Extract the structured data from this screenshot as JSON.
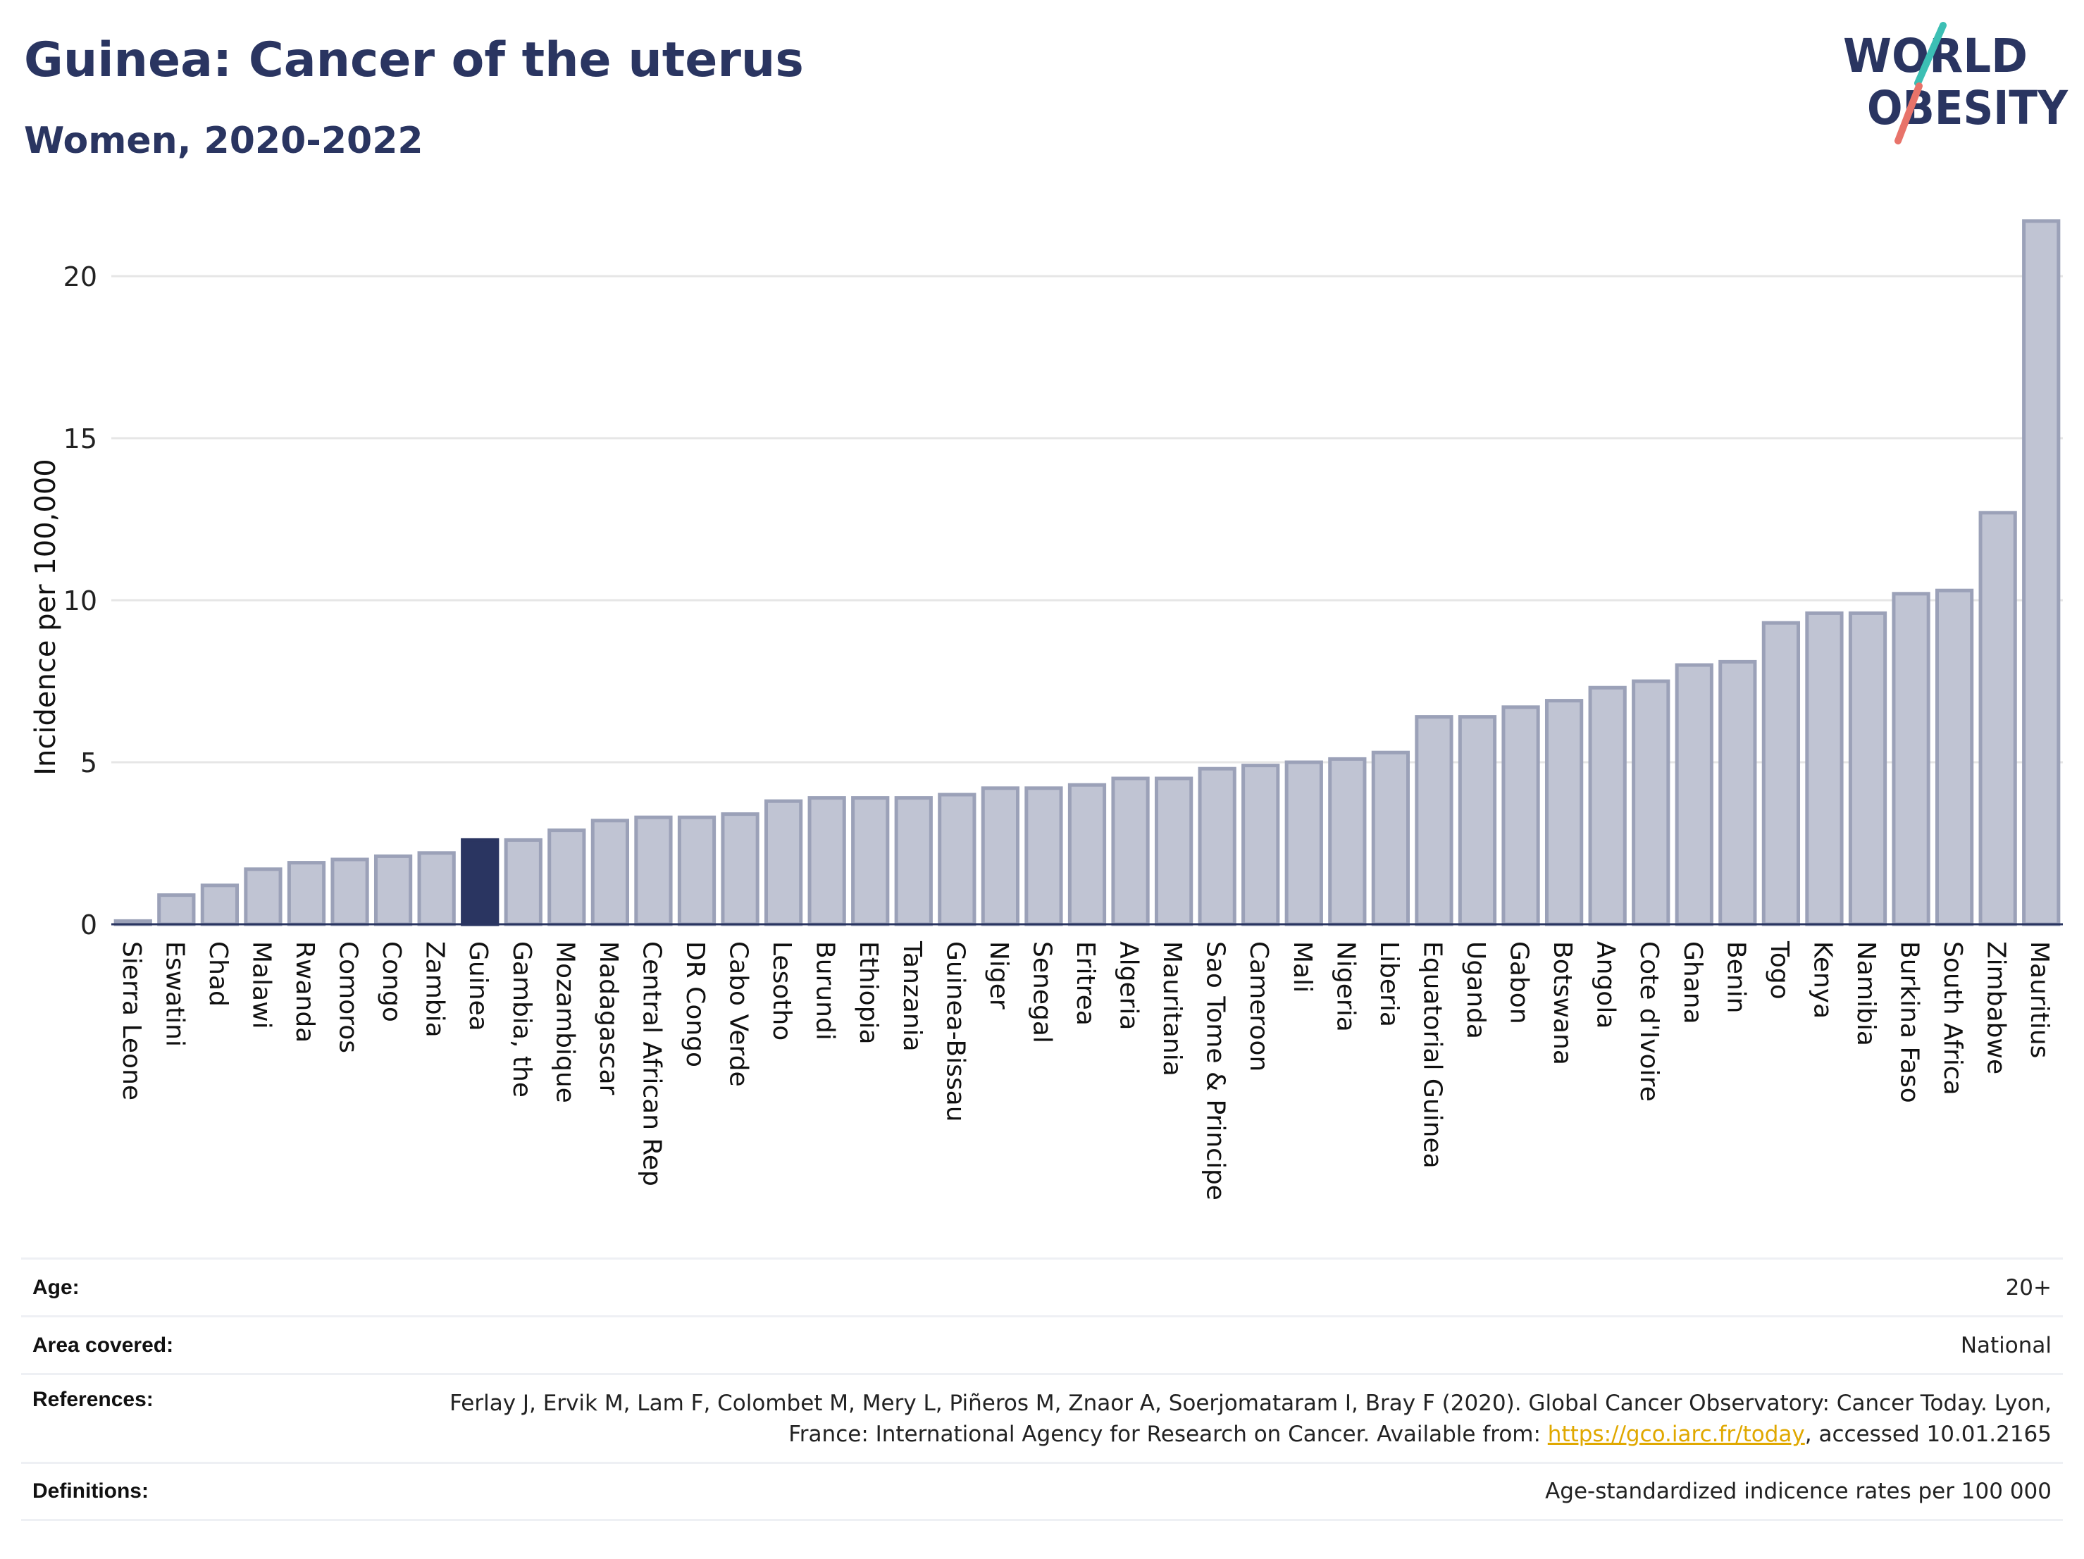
{
  "header": {
    "title": "Guinea: Cancer of the uterus",
    "subtitle": "Women, 2020-2022"
  },
  "logo": {
    "line1": "WORLD",
    "line2": "OBESITY"
  },
  "colors": {
    "highlight": "#2a3561",
    "bar_fill": "#c0c4d3",
    "bar_stroke": "#9ba1b8",
    "grid": "#e6e6e6",
    "logo_text": "#2a3561",
    "logo_teal": "#3cbfb4",
    "logo_coral": "#e8736a",
    "link": "#e0a800"
  },
  "chart_data": {
    "type": "bar",
    "ylabel": "Incidence per 100,000",
    "ylim": [
      0,
      22
    ],
    "yticks": [
      0,
      5,
      10,
      15,
      20
    ],
    "grid": true,
    "highlight_category": "Guinea",
    "categories": [
      "Sierra Leone",
      "Eswatini",
      "Chad",
      "Malawi",
      "Rwanda",
      "Comoros",
      "Congo",
      "Zambia",
      "Guinea",
      "Gambia, the",
      "Mozambique",
      "Madagascar",
      "Central African Rep",
      "DR Congo",
      "Cabo Verde",
      "Lesotho",
      "Burundi",
      "Ethiopia",
      "Tanzania",
      "Guinea-Bissau",
      "Niger",
      "Senegal",
      "Eritrea",
      "Algeria",
      "Mauritania",
      "Sao Tome & Principe",
      "Cameroon",
      "Mali",
      "Nigeria",
      "Liberia",
      "Equatorial Guinea",
      "Uganda",
      "Gabon",
      "Botswana",
      "Angola",
      "Cote d'Ivoire",
      "Ghana",
      "Benin",
      "Togo",
      "Kenya",
      "Namibia",
      "Burkina Faso",
      "South Africa",
      "Zimbabwe",
      "Mauritius"
    ],
    "values": [
      0.1,
      0.9,
      1.2,
      1.7,
      1.9,
      2.0,
      2.1,
      2.2,
      2.6,
      2.6,
      2.9,
      3.2,
      3.3,
      3.3,
      3.4,
      3.8,
      3.9,
      3.9,
      3.9,
      4.0,
      4.2,
      4.2,
      4.3,
      4.5,
      4.5,
      4.8,
      4.9,
      5.0,
      5.1,
      5.3,
      6.4,
      6.4,
      6.7,
      6.9,
      7.3,
      7.5,
      8.0,
      8.1,
      9.3,
      9.6,
      9.6,
      10.2,
      10.3,
      12.7,
      21.7
    ]
  },
  "meta": [
    {
      "label": "Age:",
      "value": "20+"
    },
    {
      "label": "Area covered:",
      "value": "National"
    },
    {
      "label": "References:",
      "value_before": "Ferlay J, Ervik M, Lam F, Colombet M, Mery L, Piñeros M, Znaor A, Soerjomataram I, Bray F (2020). Global Cancer Observatory: Cancer Today. Lyon, France: International Agency for Research on Cancer. Available from: ",
      "link_text": "https://gco.iarc.fr/today",
      "value_after": ", accessed 10.01.2165"
    },
    {
      "label": "Definitions:",
      "value": "Age-standardized indicence rates per 100 000"
    }
  ]
}
